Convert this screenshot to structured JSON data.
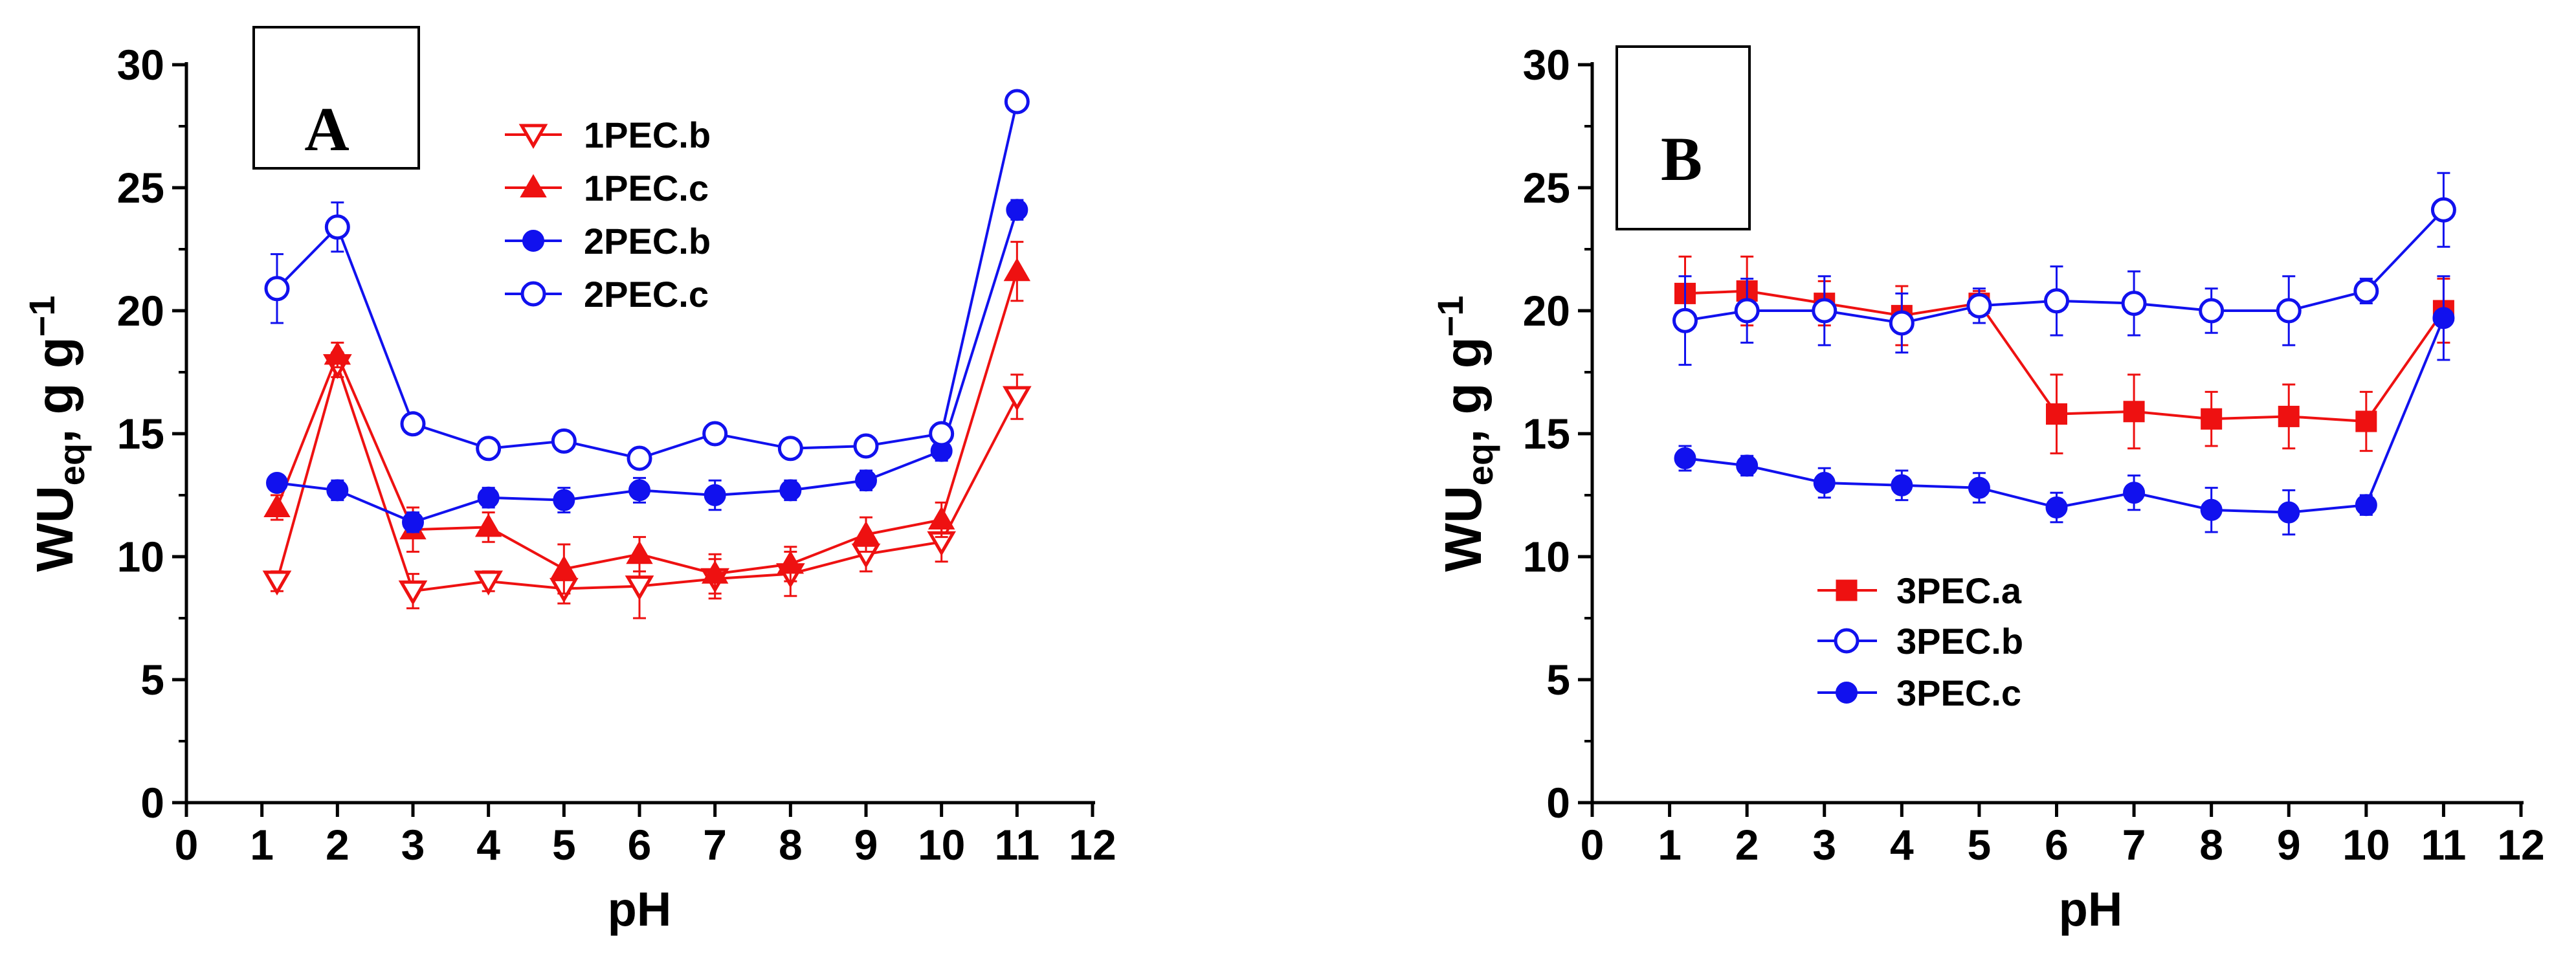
{
  "chart_data": [
    {
      "type": "line",
      "panel_label": "A",
      "xlabel": "pH",
      "ylabel_main": "WU",
      "ylabel_sub": "eq",
      "ylabel_unit": ", g g",
      "ylabel_sup": "−1",
      "xlim": [
        0,
        12
      ],
      "ylim": [
        0,
        30
      ],
      "xticks": [
        "0",
        "1",
        "2",
        "3",
        "4",
        "5",
        "6",
        "7",
        "8",
        "9",
        "10",
        "11",
        "12"
      ],
      "yticks": [
        "0",
        "5",
        "10",
        "15",
        "20",
        "25",
        "30"
      ],
      "legend_position": "upper-middle",
      "series": [
        {
          "name": "1PEC.b",
          "color": "#ee1111",
          "marker": "triangle-down-open",
          "x": [
            1.2,
            2,
            3,
            4,
            5,
            6,
            7,
            8,
            9,
            10,
            11
          ],
          "y": [
            9.0,
            17.8,
            8.6,
            9.0,
            8.7,
            8.8,
            9.1,
            9.3,
            10.1,
            10.6,
            16.5
          ],
          "err": [
            0.4,
            0.5,
            0.7,
            0.4,
            0.6,
            1.3,
            0.8,
            0.9,
            0.7,
            0.8,
            0.9
          ]
        },
        {
          "name": "1PEC.c",
          "color": "#ee1111",
          "marker": "triangle-up-filled",
          "x": [
            1.2,
            2,
            3,
            4,
            5,
            6,
            7,
            8,
            9,
            10,
            11
          ],
          "y": [
            12.0,
            18.2,
            11.1,
            11.2,
            9.5,
            10.1,
            9.3,
            9.7,
            10.9,
            11.5,
            21.6
          ],
          "err": [
            0.5,
            0.5,
            0.9,
            0.6,
            1.0,
            0.7,
            0.8,
            0.7,
            0.7,
            0.7,
            1.2
          ]
        },
        {
          "name": "2PEC.b",
          "color": "#1111ee",
          "marker": "circle-filled",
          "x": [
            1.2,
            2,
            3,
            4,
            5,
            6,
            7,
            8,
            9,
            10,
            11
          ],
          "y": [
            13.0,
            12.7,
            11.4,
            12.4,
            12.3,
            12.7,
            12.5,
            12.7,
            13.1,
            14.3,
            24.1
          ],
          "err": [
            0.3,
            0.4,
            0.4,
            0.4,
            0.5,
            0.5,
            0.6,
            0.4,
            0.4,
            0.4,
            0.4
          ]
        },
        {
          "name": "2PEC.c",
          "color": "#1111ee",
          "marker": "circle-open",
          "x": [
            1.2,
            2,
            3,
            4,
            5,
            6,
            7,
            8,
            9,
            10,
            11
          ],
          "y": [
            20.9,
            23.4,
            15.4,
            14.4,
            14.7,
            14.0,
            15.0,
            14.4,
            14.5,
            15.0,
            28.5
          ],
          "err": [
            1.4,
            1.0,
            0.3,
            0.3,
            0.3,
            0.3,
            0.3,
            0.3,
            0.3,
            0.3,
            0.3
          ]
        }
      ]
    },
    {
      "type": "line",
      "panel_label": "B",
      "xlabel": "pH",
      "ylabel_main": "WU",
      "ylabel_sub": "eq",
      "ylabel_unit": ", g g",
      "ylabel_sup": "−1",
      "xlim": [
        0,
        12
      ],
      "ylim": [
        0,
        30
      ],
      "xticks": [
        "0",
        "1",
        "2",
        "3",
        "4",
        "5",
        "6",
        "7",
        "8",
        "9",
        "10",
        "11",
        "12"
      ],
      "yticks": [
        "0",
        "5",
        "10",
        "15",
        "20",
        "25",
        "30"
      ],
      "legend_position": "lower-left",
      "series": [
        {
          "name": "3PEC.a",
          "color": "#ee1111",
          "marker": "square-filled",
          "x": [
            1.2,
            2,
            3,
            4,
            5,
            6,
            7,
            8,
            9,
            10,
            11
          ],
          "y": [
            20.7,
            20.8,
            20.3,
            19.8,
            20.3,
            15.8,
            15.9,
            15.6,
            15.7,
            15.5,
            20.0
          ],
          "err": [
            1.5,
            1.4,
            0.9,
            1.2,
            0.5,
            1.6,
            1.5,
            1.1,
            1.3,
            1.2,
            1.3
          ]
        },
        {
          "name": "3PEC.b",
          "color": "#1111ee",
          "marker": "circle-open",
          "x": [
            1.2,
            2,
            3,
            4,
            5,
            6,
            7,
            8,
            9,
            10,
            11
          ],
          "y": [
            19.6,
            20.0,
            20.0,
            19.5,
            20.2,
            20.4,
            20.3,
            20.0,
            20.0,
            20.8,
            24.1
          ],
          "err": [
            1.8,
            1.3,
            1.4,
            1.2,
            0.7,
            1.4,
            1.3,
            0.9,
            1.4,
            0.5,
            1.5
          ]
        },
        {
          "name": "3PEC.c",
          "color": "#1111ee",
          "marker": "circle-filled",
          "x": [
            1.2,
            2,
            3,
            4,
            5,
            6,
            7,
            8,
            9,
            10,
            11
          ],
          "y": [
            14.0,
            13.7,
            13.0,
            12.9,
            12.8,
            12.0,
            12.6,
            11.9,
            11.8,
            12.1,
            19.7
          ],
          "err": [
            0.5,
            0.4,
            0.6,
            0.6,
            0.6,
            0.6,
            0.7,
            0.9,
            0.9,
            0.4,
            1.7
          ]
        }
      ]
    }
  ]
}
